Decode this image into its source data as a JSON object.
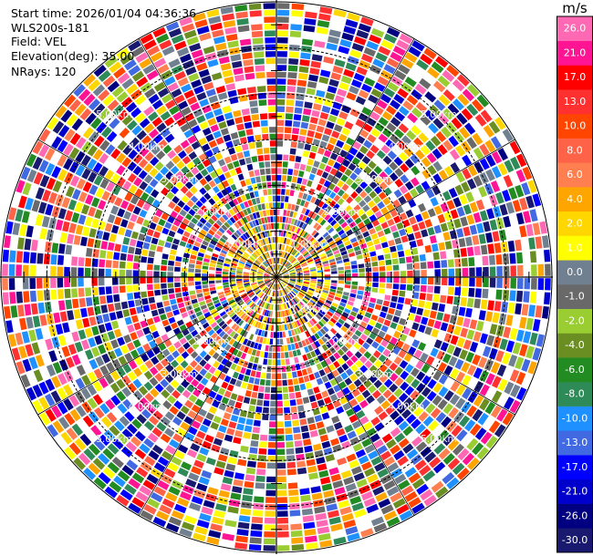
{
  "info": {
    "start_time": "Start time: 2026/01/04 04:36:36",
    "instrument": "WLS200s-181",
    "field": "Field: VEL",
    "elevation": "Elevation(deg): 35.00",
    "nrays": "NRays: 120"
  },
  "chart_data": {
    "type": "heatmap",
    "projection": "polar-ppi",
    "field": "VEL",
    "n_rays": 120,
    "n_gates": 40,
    "max_range_km": 6.0,
    "range_rings_km": [
      1,
      2,
      3,
      4,
      5,
      6
    ],
    "ring_labels": [
      "1.00km",
      "2.00km",
      "3.00km",
      "4.00km",
      "5.00km"
    ],
    "colorbar": {
      "unit": "m/s",
      "levels": [
        "-30.0",
        "-26.0",
        "-21.0",
        "-17.0",
        "-13.0",
        "-10.0",
        "-8.0",
        "-6.0",
        "-4.0",
        "-2.0",
        "-1.0",
        "0.0",
        "1.0",
        "2.0",
        "4.0",
        "6.0",
        "8.0",
        "10.0",
        "13.0",
        "17.0",
        "21.0",
        "26.0"
      ],
      "colors": [
        "#191970",
        "#000080",
        "#0000cd",
        "#0000ff",
        "#4169e1",
        "#1e90ff",
        "#2e8b57",
        "#228b22",
        "#6b8e23",
        "#9acd32",
        "#696969",
        "#708090",
        "#ffff00",
        "#ffd700",
        "#ffa500",
        "#ff7f50",
        "#ff6347",
        "#ff4500",
        "#ff3030",
        "#ff0000",
        "#ff1493",
        "#ff69b4"
      ]
    }
  }
}
